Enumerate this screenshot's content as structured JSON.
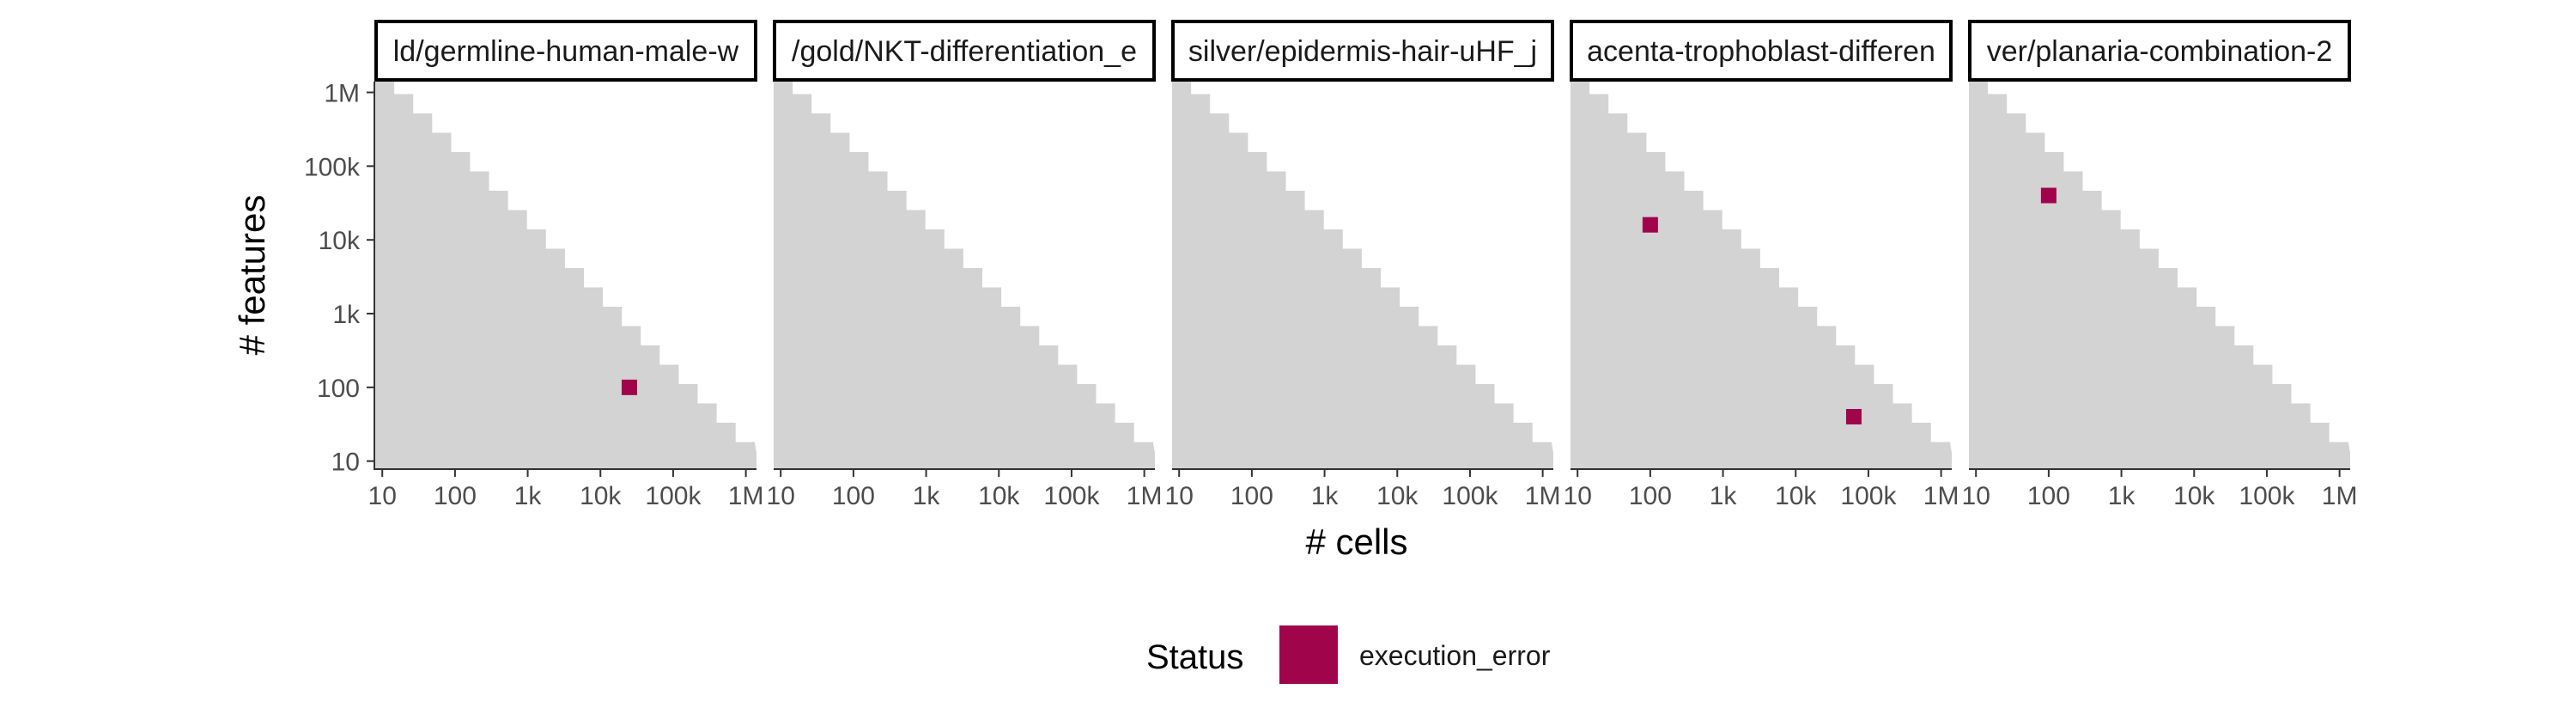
{
  "chart_data": {
    "type": "heatmap",
    "xlabel": "# cells",
    "ylabel": "# features",
    "x_scale": "log10",
    "y_scale": "log10",
    "xlim": [
      8,
      1400000
    ],
    "ylim": [
      8,
      1400000
    ],
    "x_ticks": [
      10,
      100,
      1000,
      10000,
      100000,
      1000000
    ],
    "x_tick_labels": [
      "10",
      "100",
      "1k",
      "10k",
      "100k",
      "1M"
    ],
    "y_ticks": [
      10,
      100,
      1000,
      10000,
      100000,
      1000000
    ],
    "y_tick_labels": [
      "10",
      "100",
      "1k",
      "10k",
      "100k",
      "1M"
    ],
    "grid": false,
    "background_color": "#d3d3d3",
    "staircase_steps": 20,
    "legend": {
      "title": "Status",
      "position": "bottom",
      "entries": [
        {
          "label": "execution_error",
          "color": "#a0044a"
        }
      ]
    },
    "facets": [
      {
        "label": "ld/germline-human-male-w",
        "points": [
          {
            "cells": 25000,
            "features": 100,
            "status": "execution_error"
          }
        ]
      },
      {
        "label": "/gold/NKT-differentiation_e",
        "points": []
      },
      {
        "label": "silver/epidermis-hair-uHF_j",
        "points": []
      },
      {
        "label": "acenta-trophoblast-differen",
        "points": [
          {
            "cells": 100,
            "features": 16000,
            "status": "execution_error"
          },
          {
            "cells": 63000,
            "features": 40,
            "status": "execution_error"
          }
        ]
      },
      {
        "label": "ver/planaria-combination-2",
        "points": [
          {
            "cells": 100,
            "features": 40000,
            "status": "execution_error"
          }
        ]
      }
    ]
  }
}
